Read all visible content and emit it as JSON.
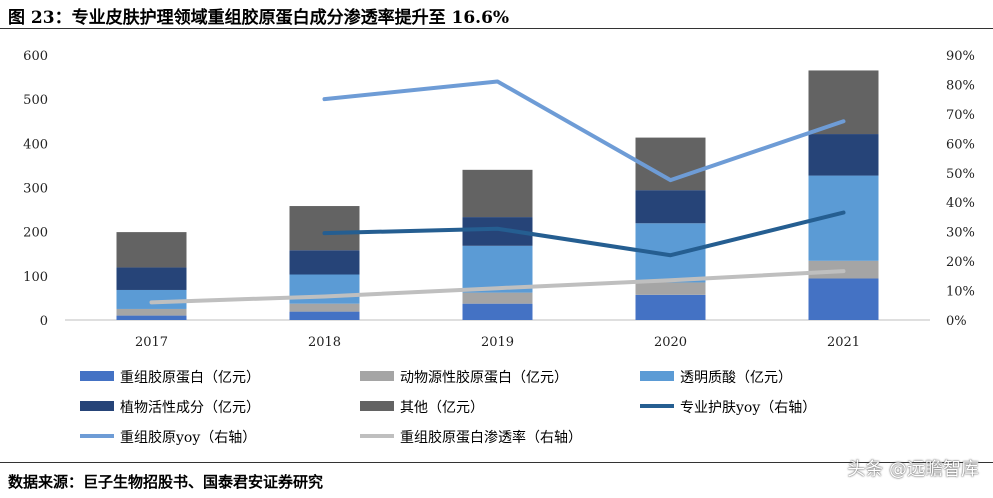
{
  "figure": {
    "title": "图 23：专业皮肤护理领域重组胶原蛋白成分渗透率提升至 16.6%",
    "source": "数据来源：巨子生物招股书、国泰君安证券研究",
    "watermark": "头条 @远瞻智库"
  },
  "chart_data": {
    "type": "bar",
    "stacked": true,
    "categories": [
      "2017",
      "2018",
      "2019",
      "2020",
      "2021"
    ],
    "y_left": {
      "lim": [
        0,
        600
      ],
      "ticks": [
        "0",
        "100",
        "200",
        "300",
        "400",
        "500",
        "600"
      ]
    },
    "y_right": {
      "lim": [
        0,
        90
      ],
      "ticks": [
        "0%",
        "10%",
        "20%",
        "30%",
        "40%",
        "50%",
        "60%",
        "70%",
        "80%",
        "90%"
      ]
    },
    "grid": false,
    "legend_position": "bottom",
    "bar_series": [
      {
        "name": "重组胶原蛋白（亿元）",
        "color": "#4472C4",
        "values": [
          10,
          19,
          37,
          57,
          94
        ]
      },
      {
        "name": "动物源性胶原蛋白（亿元）",
        "color": "#A5A5A5",
        "values": [
          15,
          18,
          25,
          28,
          40
        ]
      },
      {
        "name": "透明质酸（亿元）",
        "color": "#5B9BD5",
        "values": [
          43,
          66,
          106,
          134,
          193
        ]
      },
      {
        "name": "植物活性成分（亿元）",
        "color": "#264478",
        "values": [
          51,
          55,
          65,
          75,
          94
        ]
      },
      {
        "name": "其他（亿元）",
        "color": "#636363",
        "values": [
          80,
          100,
          107,
          119,
          144
        ]
      }
    ],
    "line_series": [
      {
        "name": "专业护肤yoy（右轴）",
        "color": "#255E91",
        "axis": "right",
        "values": [
          null,
          29.5,
          31,
          22,
          36.5
        ]
      },
      {
        "name": "重组胶原yoy（右轴）",
        "color": "#6E9CD6",
        "axis": "right",
        "values": [
          null,
          75,
          81,
          47.5,
          67.5
        ]
      },
      {
        "name": "重组胶原蛋白渗透率（右轴）",
        "color": "#BFBFBF",
        "axis": "right",
        "values": [
          6,
          8,
          10.8,
          13.5,
          16.6
        ]
      }
    ]
  }
}
